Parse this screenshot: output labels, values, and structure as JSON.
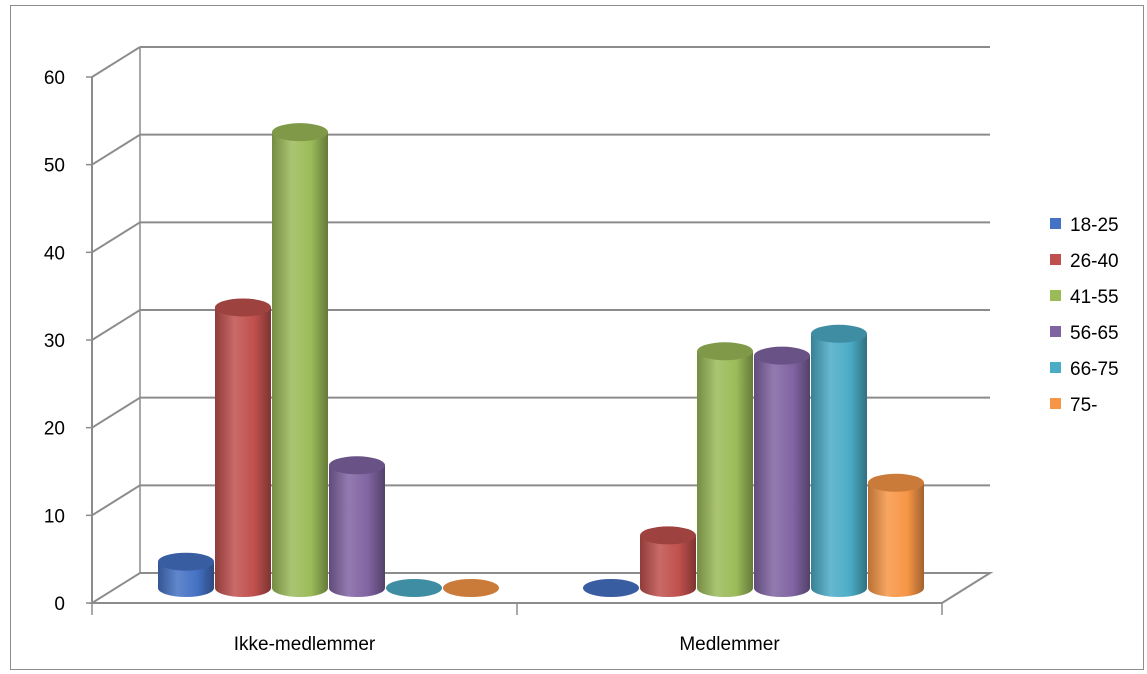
{
  "chart_data": {
    "type": "bar",
    "subtype": "3d-cylinder",
    "title": "",
    "xlabel": "",
    "ylabel": "",
    "categories": [
      "Ikke-medlemmer",
      "Medlemmer"
    ],
    "ylim": [
      0,
      60
    ],
    "yticks": [
      0,
      10,
      20,
      30,
      40,
      50,
      60
    ],
    "ytick_labels": [
      "0",
      "10",
      "20",
      "30",
      "40",
      "50",
      "60"
    ],
    "grid": true,
    "legend_position": "right",
    "series": [
      {
        "name": "18-25",
        "values": [
          3,
          0
        ],
        "color": "#4472C4"
      },
      {
        "name": "26-40",
        "values": [
          32,
          6
        ],
        "color": "#C0504D"
      },
      {
        "name": "41-55",
        "values": [
          52,
          27
        ],
        "color": "#9BBB59"
      },
      {
        "name": "56-65",
        "values": [
          14,
          26.5
        ],
        "color": "#8064A2"
      },
      {
        "name": "66-75",
        "values": [
          0,
          29
        ],
        "color": "#4BACC6"
      },
      {
        "name": "75-",
        "values": [
          0,
          12
        ],
        "color": "#F79646"
      }
    ]
  }
}
